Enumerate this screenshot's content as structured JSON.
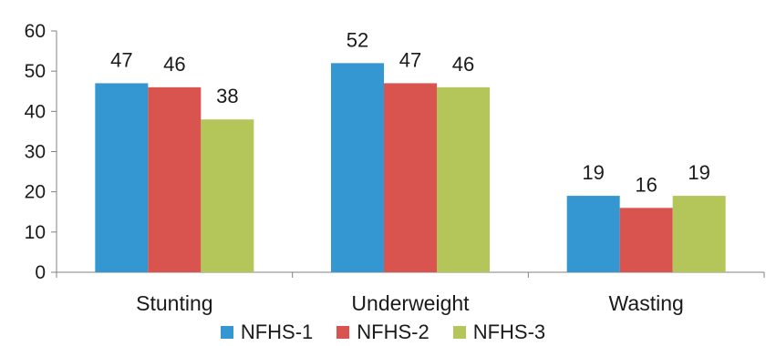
{
  "chart_data": {
    "type": "bar",
    "categories": [
      "Stunting",
      "Underweight",
      "Wasting"
    ],
    "series": [
      {
        "name": "NFHS-1",
        "color": "#3497d1",
        "values": [
          47,
          52,
          19
        ]
      },
      {
        "name": "NFHS-2",
        "color": "#d9534f",
        "values": [
          46,
          47,
          16
        ]
      },
      {
        "name": "NFHS-3",
        "color": "#b4c65a",
        "values": [
          38,
          46,
          19
        ]
      }
    ],
    "ylim": [
      0,
      60
    ],
    "yticks": [
      0,
      10,
      20,
      30,
      40,
      50,
      60
    ],
    "grid": false,
    "legend_position": "bottom",
    "data_labels": true
  }
}
